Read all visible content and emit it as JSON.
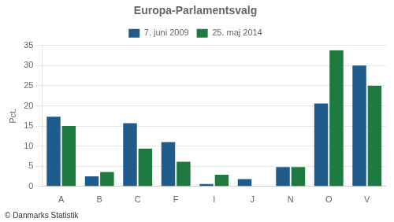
{
  "chart_data": {
    "type": "bar",
    "title": "Europa-Parlamentsvalg",
    "categories": [
      "A",
      "B",
      "C",
      "F",
      "I",
      "J",
      "N",
      "O",
      "V"
    ],
    "series": [
      {
        "name": "7. juni 2009",
        "color": "#1F5C8B",
        "values": [
          17.3,
          2.5,
          15.7,
          11.0,
          0.6,
          1.8,
          4.8,
          20.6,
          30.0
        ]
      },
      {
        "name": "25. maj 2014",
        "color": "#1E7A3E",
        "values": [
          15.0,
          3.6,
          9.4,
          6.1,
          2.9,
          0.0,
          4.8,
          33.8,
          25.0
        ]
      }
    ],
    "ylabel": "Pct.",
    "ylim": [
      0,
      35
    ],
    "yticks": [
      0,
      5,
      10,
      15,
      20,
      25,
      30,
      35
    ],
    "grid": true,
    "legend": "top",
    "annotations": [
      "© Danmarks Statistik"
    ]
  }
}
